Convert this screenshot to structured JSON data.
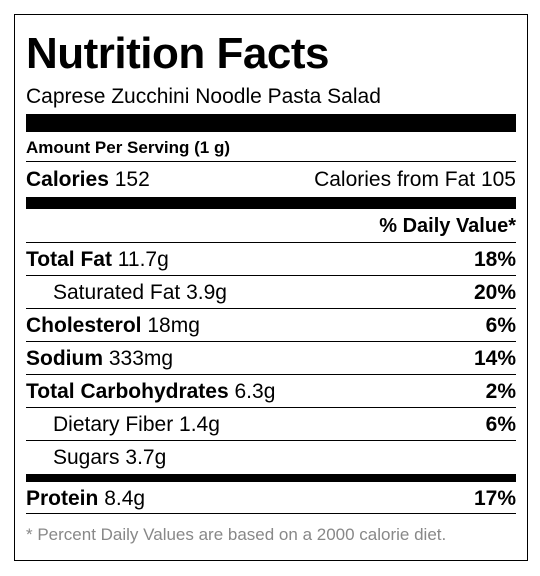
{
  "label": {
    "title": "Nutrition Facts",
    "subtitle": "Caprese Zucchini Noodle Pasta Salad",
    "serving": "Amount Per Serving (1 g)",
    "calories": {
      "name": "Calories",
      "value": "152",
      "from_fat": "Calories from Fat 105"
    },
    "dv_header": "% Daily Value*",
    "nutrients": [
      {
        "name": "Total Fat",
        "amount": "11.7g",
        "pct": "18%"
      },
      {
        "name": "Saturated Fat",
        "amount": "3.9g",
        "pct": "20%"
      },
      {
        "name": "Cholesterol",
        "amount": "18mg",
        "pct": "6%"
      },
      {
        "name": "Sodium",
        "amount": "333mg",
        "pct": "14%"
      },
      {
        "name": "Total Carbohydrates",
        "amount": "6.3g",
        "pct": "2%"
      },
      {
        "name": "Dietary Fiber",
        "amount": "1.4g",
        "pct": "6%"
      },
      {
        "name": "Sugars",
        "amount": "3.7g",
        "pct": ""
      },
      {
        "name": "Protein",
        "amount": "8.4g",
        "pct": "17%"
      }
    ],
    "footnote": "* Percent Daily Values are based on a 2000 calorie diet."
  }
}
